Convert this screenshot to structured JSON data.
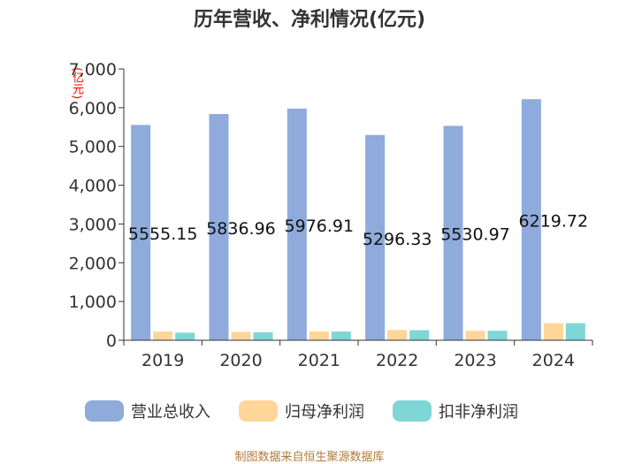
{
  "title": "历年营收、净利情况(亿元)",
  "source": "制图数据来自恒生聚源数据库",
  "chart_data": {
    "type": "bar",
    "title": "历年营收、净利情况(亿元)",
    "ylabel": "(亿元)",
    "xlabel": "",
    "ylim": [
      0,
      7000
    ],
    "yticks": [
      0,
      1000,
      2000,
      3000,
      4000,
      5000,
      6000,
      7000
    ],
    "ytick_labels": [
      "0",
      "1,000",
      "2,000",
      "3,000",
      "4,000",
      "5,000",
      "6,000",
      "7,000"
    ],
    "categories": [
      "2019",
      "2020",
      "2021",
      "2022",
      "2023",
      "2024"
    ],
    "series": [
      {
        "name": "营业总收入",
        "color": "#8eabdb",
        "values": [
          5555.15,
          5836.96,
          5976.91,
          5296.33,
          5530.97,
          6219.72
        ]
      },
      {
        "name": "归母净利润",
        "color": "#ffd699",
        "values": [
          225,
          215,
          230,
          265,
          245,
          440
        ]
      },
      {
        "name": "扣非净利润",
        "color": "#7fd6d6",
        "values": [
          195,
          205,
          225,
          260,
          245,
          440
        ]
      }
    ],
    "data_labels": [
      "5555.15",
      "5836.96",
      "5976.91",
      "5296.33",
      "5530.97",
      "6219.72"
    ],
    "legend_position": "bottom",
    "grid": false
  }
}
